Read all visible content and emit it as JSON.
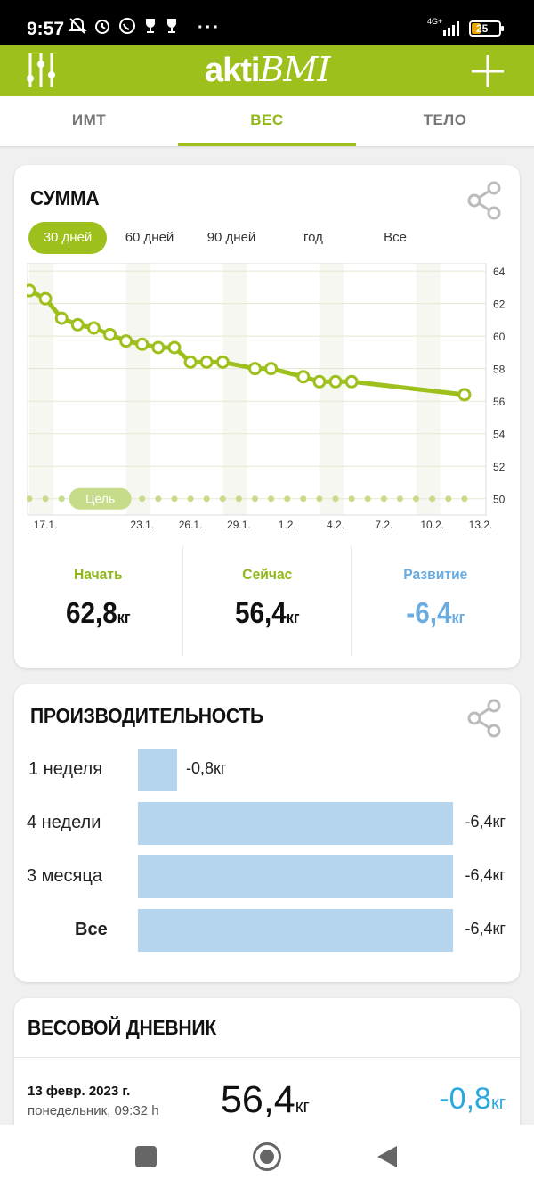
{
  "status_bar": {
    "time": "9:57",
    "dots": "···",
    "network": "4G+",
    "battery": "25"
  },
  "app": {
    "logo_bold": "akti",
    "logo_italic": "BMI"
  },
  "tabs": [
    {
      "label": "ИМТ"
    },
    {
      "label": "ВЕС",
      "active": true
    },
    {
      "label": "ТЕЛО"
    }
  ],
  "summary": {
    "title": "СУММА",
    "ranges": [
      {
        "label": "30 дней",
        "active": true
      },
      {
        "label": "60 дней"
      },
      {
        "label": "90 дней"
      },
      {
        "label": "год"
      },
      {
        "label": "Все"
      }
    ],
    "goal_label": "Цель",
    "start_label": "Начать",
    "start_value": "62,8",
    "now_label": "Сейчас",
    "now_value": "56,4",
    "dev_label": "Развитие",
    "dev_value": "-6,4",
    "unit": "кг"
  },
  "chart_data": {
    "type": "line",
    "ylim": [
      49,
      64.5
    ],
    "y_ticks": [
      64,
      62,
      60,
      58,
      56,
      54,
      52,
      50
    ],
    "x_range": [
      16,
      44
    ],
    "x_ticks": [
      {
        "x": 17,
        "label": "17.1."
      },
      {
        "x": 23,
        "label": "23.1."
      },
      {
        "x": 26,
        "label": "26.1."
      },
      {
        "x": 29,
        "label": "29.1."
      },
      {
        "x": 32,
        "label": "1.2."
      },
      {
        "x": 35,
        "label": "4.2."
      },
      {
        "x": 38,
        "label": "7.2."
      },
      {
        "x": 41,
        "label": "10.2."
      },
      {
        "x": 44,
        "label": "13.2."
      }
    ],
    "series": [
      {
        "points": [
          [
            16,
            62.8
          ],
          [
            17,
            62.3
          ],
          [
            18,
            61.1
          ],
          [
            19,
            60.7
          ],
          [
            20,
            60.5
          ],
          [
            21,
            60.1
          ],
          [
            22,
            59.7
          ],
          [
            23,
            59.5
          ],
          [
            24,
            59.3
          ],
          [
            25,
            59.3
          ],
          [
            26,
            58.4
          ],
          [
            27,
            58.4
          ],
          [
            28,
            58.4
          ],
          [
            30,
            58.0
          ],
          [
            31,
            58.0
          ],
          [
            33,
            57.5
          ],
          [
            34,
            57.2
          ],
          [
            35,
            57.2
          ],
          [
            36,
            57.2
          ],
          [
            43,
            56.4
          ]
        ]
      }
    ],
    "goal": 50,
    "colors": {
      "line": "#9ec01d",
      "goal": "#c7dc8a"
    }
  },
  "performance": {
    "title": "ПРОИЗВОДИТЕЛЬНОСТЬ",
    "rows": [
      {
        "label": "1 неделя",
        "value": "-0,8кг",
        "fraction": 0.125
      },
      {
        "label": "4 недели",
        "value": "-6,4кг",
        "fraction": 1
      },
      {
        "label": "3 месяца",
        "value": "-6,4кг",
        "fraction": 1
      },
      {
        "label": "Все",
        "value": "-6,4кг",
        "fraction": 1,
        "bold": true
      }
    ]
  },
  "diary": {
    "title": "ВЕСОВОЙ ДНЕВНИК",
    "entries": [
      {
        "date": "13 февр. 2023 г.",
        "sub": "понедельник, 09:32 h",
        "weight": "56,4",
        "diff": "-0,8",
        "unit": "кг"
      }
    ]
  }
}
